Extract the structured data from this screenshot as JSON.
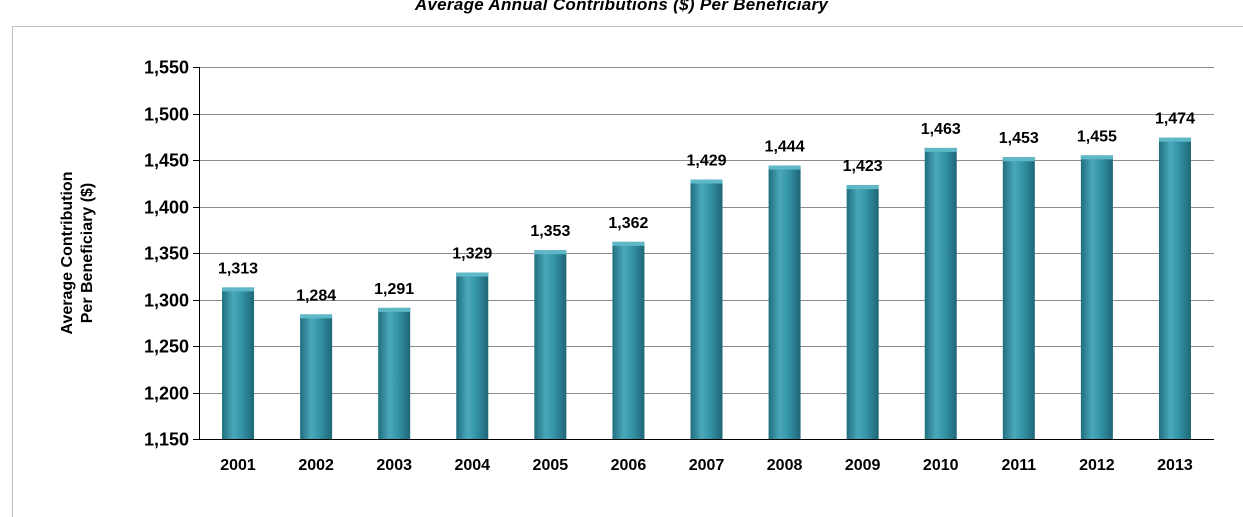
{
  "chart_data": {
    "type": "bar",
    "title": "Average Annual Contributions ($) Per Beneficiary",
    "xlabel": "",
    "ylabel_lines": [
      "Average Contribution",
      "Per Beneficiary ($)"
    ],
    "categories": [
      "2001",
      "2002",
      "2003",
      "2004",
      "2005",
      "2006",
      "2007",
      "2008",
      "2009",
      "2010",
      "2011",
      "2012",
      "2013"
    ],
    "values": [
      1313,
      1284,
      1291,
      1329,
      1353,
      1362,
      1429,
      1444,
      1423,
      1463,
      1453,
      1455,
      1474
    ],
    "data_labels": [
      "1,313",
      "1,284",
      "1,291",
      "1,329",
      "1,353",
      "1,362",
      "1,429",
      "1,444",
      "1,423",
      "1,463",
      "1,453",
      "1,455",
      "1,474"
    ],
    "ylim": [
      1150,
      1550
    ],
    "yticks": [
      1150,
      1200,
      1250,
      1300,
      1350,
      1400,
      1450,
      1500,
      1550
    ],
    "ytick_labels": [
      "1,150",
      "1,200",
      "1,250",
      "1,300",
      "1,350",
      "1,400",
      "1,450",
      "1,500",
      "1,550"
    ],
    "grid": true,
    "bar_color": "#2e8a9c",
    "legend": "none"
  }
}
